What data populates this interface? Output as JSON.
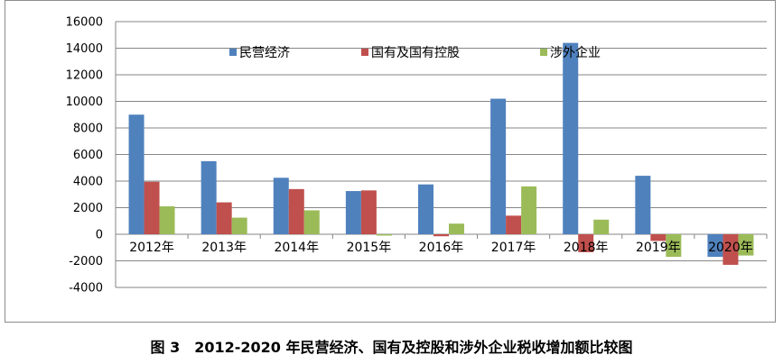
{
  "chart_data": {
    "type": "bar",
    "categories": [
      "2012年",
      "2013年",
      "2014年",
      "2015年",
      "2016年",
      "2017年",
      "2018年",
      "2019年",
      "2020年"
    ],
    "series": [
      {
        "name": "民营经济",
        "color": "#4f81bd",
        "values": [
          9000,
          5500,
          4250,
          3250,
          3750,
          10200,
          14400,
          4400,
          -1700
        ]
      },
      {
        "name": "国有及国有控股",
        "color": "#c0504d",
        "values": [
          3950,
          2400,
          3400,
          3300,
          -150,
          1400,
          -1350,
          -500,
          -2300
        ]
      },
      {
        "name": "涉外企业",
        "color": "#9bbb59",
        "values": [
          2100,
          1250,
          1800,
          -100,
          800,
          3600,
          1100,
          -1700,
          -1600
        ]
      }
    ],
    "ylim": [
      -4000,
      16000
    ],
    "yticks": [
      16000,
      14000,
      12000,
      10000,
      8000,
      6000,
      4000,
      2000,
      0,
      -2000,
      -4000
    ],
    "legend_position": "top"
  },
  "caption": "图 3　2012-2020 年民营经济、国有及控股和涉外企业税收增加额比较图"
}
